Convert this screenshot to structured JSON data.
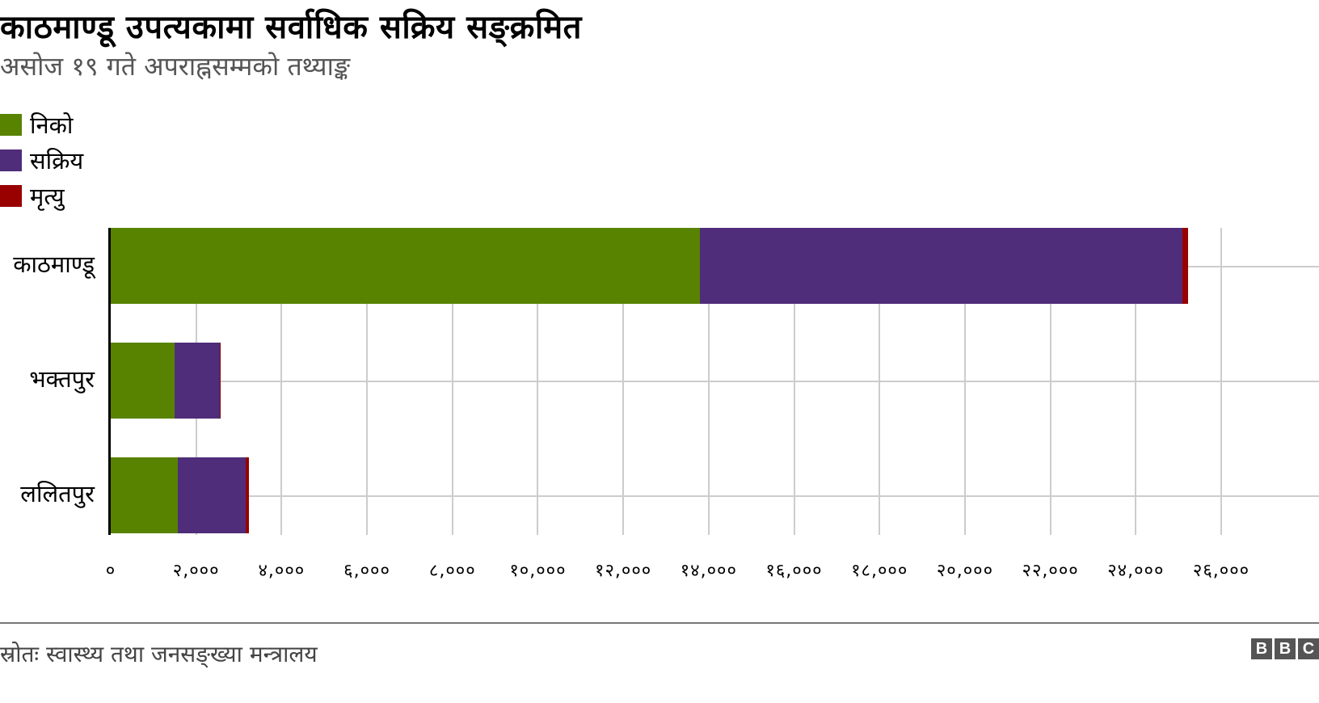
{
  "title": "काठमाण्डू उपत्यकामा सर्वाधिक सक्रिय सङ्क्रमित",
  "subtitle": "असोज १९ गते अपराह्नसम्मको तथ्याङ्क",
  "legend": [
    {
      "label": "निको",
      "color": "#588300"
    },
    {
      "label": "सक्रिय",
      "color": "#4f2d7a"
    },
    {
      "label": "मृत्यु",
      "color": "#990000"
    }
  ],
  "footer": {
    "source": "स्रोतः स्वास्थ्य तथा जनसङ्ख्या मन्त्रालय",
    "logo": [
      "B",
      "B",
      "C"
    ]
  },
  "chart_data": {
    "type": "bar",
    "orientation": "horizontal",
    "stacked": true,
    "title": "काठमाण्डू उपत्यकामा सर्वाधिक सक्रिय सङ्क्रमित",
    "subtitle": "असोज १९ गते अपराह्नसम्मको तथ्याङ्क",
    "categories": [
      "काठमाण्डू",
      "भक्तपुर",
      "ललितपुर"
    ],
    "series": [
      {
        "name": "निको",
        "color": "#588300",
        "values": [
          13790,
          1495,
          1570
        ]
      },
      {
        "name": "सक्रिय",
        "color": "#4f2d7a",
        "values": [
          11300,
          1060,
          1590
        ]
      },
      {
        "name": "मृत्यु",
        "color": "#990000",
        "values": [
          130,
          15,
          70
        ]
      }
    ],
    "xlabel": "",
    "ylabel": "",
    "xlim": [
      0,
      26000
    ],
    "x_ticks": [
      0,
      2000,
      4000,
      6000,
      8000,
      10000,
      12000,
      14000,
      16000,
      18000,
      20000,
      22000,
      24000,
      26000
    ],
    "x_tick_labels": [
      "०",
      "२,०००",
      "४,०००",
      "६,०००",
      "८,०००",
      "१०,०००",
      "१२,०००",
      "१४,०००",
      "१६,०००",
      "१८,०००",
      "२०,०००",
      "२२,०००",
      "२४,०००",
      "२६,०००"
    ],
    "grid": true,
    "legend_position": "top-left",
    "source": "स्रोतः स्वास्थ्य तथा जनसङ्ख्या मन्त्रालय"
  }
}
